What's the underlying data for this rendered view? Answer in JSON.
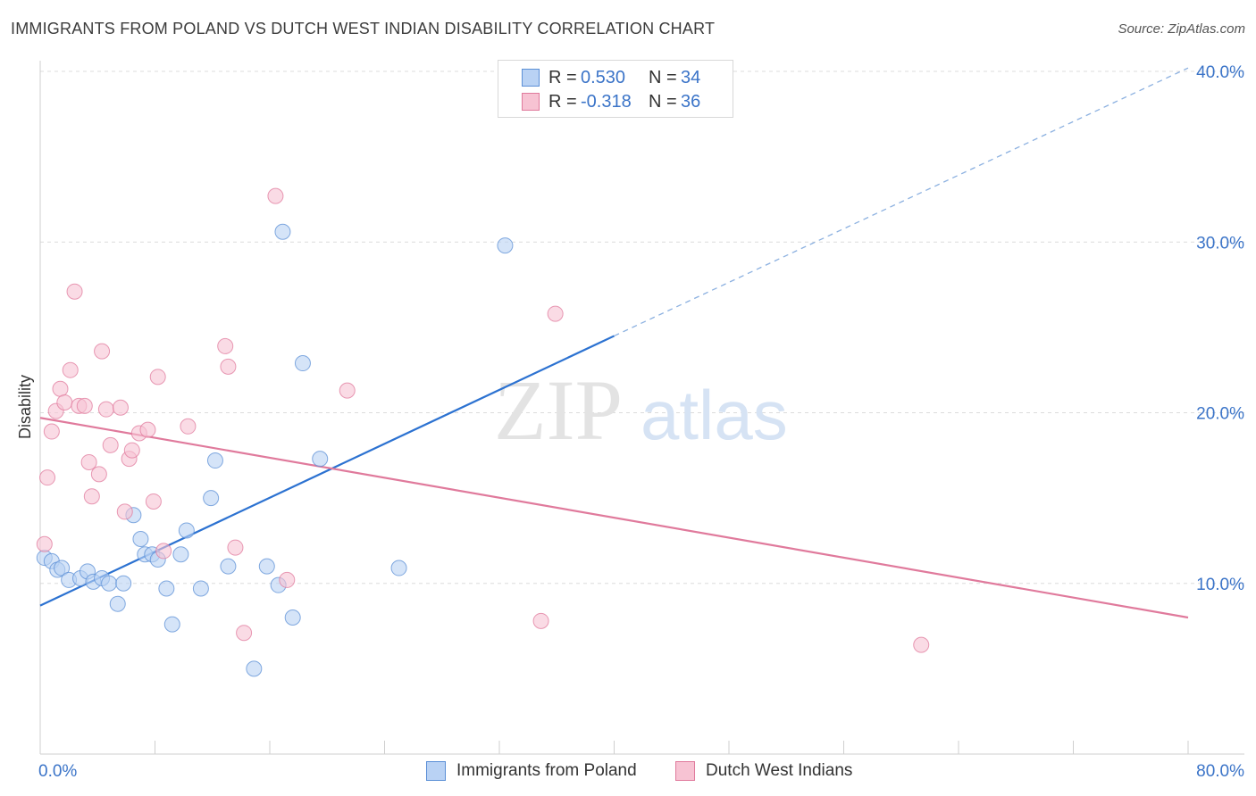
{
  "title": "IMMIGRANTS FROM POLAND VS DUTCH WEST INDIAN DISABILITY CORRELATION CHART",
  "source": "Source: ZipAtlas.com",
  "watermark": {
    "zip": "ZIP",
    "atlas": "atlas"
  },
  "legend": {
    "rows": [
      {
        "r_label": "R =",
        "r_value": "0.530",
        "n_label": "N =",
        "n_value": "34",
        "color": "#5b8fd6",
        "fill": "#b9d2f4"
      },
      {
        "r_label": "R =",
        "r_value": "-0.318",
        "n_label": "N =",
        "n_value": "36",
        "color": "#e07a9c",
        "fill": "#f7c3d3"
      }
    ]
  },
  "bottom_legend": [
    "Immigrants from Poland",
    "Dutch West Indians"
  ],
  "chart_data": {
    "type": "scatter",
    "xlabel": "",
    "ylabel": "Disability",
    "xlim": [
      0,
      80
    ],
    "ylim": [
      0,
      40
    ],
    "x_tick_labels": [
      "0.0%",
      "80.0%"
    ],
    "y_ticks": [
      10,
      20,
      30,
      40
    ],
    "y_tick_labels": [
      "10.0%",
      "20.0%",
      "30.0%",
      "40.0%"
    ],
    "grid": true,
    "legend_position": "top-center",
    "series": [
      {
        "name": "Immigrants from Poland",
        "color": "#5b8fd6",
        "fill": "#b9d2f4",
        "points": [
          [
            0.3,
            11.5
          ],
          [
            0.8,
            11.3
          ],
          [
            1.2,
            10.8
          ],
          [
            1.5,
            10.9
          ],
          [
            2.0,
            10.2
          ],
          [
            2.8,
            10.3
          ],
          [
            3.3,
            10.7
          ],
          [
            3.7,
            10.1
          ],
          [
            4.3,
            10.3
          ],
          [
            4.8,
            10.0
          ],
          [
            5.4,
            8.8
          ],
          [
            5.8,
            10.0
          ],
          [
            6.5,
            14.0
          ],
          [
            7.0,
            12.6
          ],
          [
            7.3,
            11.7
          ],
          [
            7.8,
            11.7
          ],
          [
            8.2,
            11.4
          ],
          [
            8.8,
            9.7
          ],
          [
            9.2,
            7.6
          ],
          [
            9.8,
            11.7
          ],
          [
            10.2,
            13.1
          ],
          [
            11.2,
            9.7
          ],
          [
            12.2,
            17.2
          ],
          [
            11.9,
            15.0
          ],
          [
            13.1,
            11.0
          ],
          [
            14.9,
            5.0
          ],
          [
            15.8,
            11.0
          ],
          [
            16.6,
            9.9
          ],
          [
            16.9,
            30.6
          ],
          [
            17.6,
            8.0
          ],
          [
            18.3,
            22.9
          ],
          [
            19.5,
            17.3
          ],
          [
            25.0,
            10.9
          ],
          [
            32.4,
            29.8
          ]
        ],
        "trend": {
          "x": [
            0,
            40
          ],
          "y": [
            8.7,
            24.5
          ],
          "dashed_to": [
            80,
            40.2
          ]
        }
      },
      {
        "name": "Dutch West Indians",
        "color": "#e07a9c",
        "fill": "#f7c3d3",
        "points": [
          [
            0.3,
            12.3
          ],
          [
            0.5,
            16.2
          ],
          [
            0.8,
            18.9
          ],
          [
            1.1,
            20.1
          ],
          [
            1.4,
            21.4
          ],
          [
            1.7,
            20.6
          ],
          [
            2.1,
            22.5
          ],
          [
            2.4,
            27.1
          ],
          [
            2.7,
            20.4
          ],
          [
            3.1,
            20.4
          ],
          [
            3.4,
            17.1
          ],
          [
            3.6,
            15.1
          ],
          [
            4.1,
            16.4
          ],
          [
            4.3,
            23.6
          ],
          [
            4.6,
            20.2
          ],
          [
            4.9,
            18.1
          ],
          [
            5.6,
            20.3
          ],
          [
            5.9,
            14.2
          ],
          [
            6.2,
            17.3
          ],
          [
            6.4,
            17.8
          ],
          [
            6.9,
            18.8
          ],
          [
            7.5,
            19.0
          ],
          [
            7.9,
            14.8
          ],
          [
            8.2,
            22.1
          ],
          [
            8.6,
            11.9
          ],
          [
            10.3,
            19.2
          ],
          [
            12.9,
            23.9
          ],
          [
            13.1,
            22.7
          ],
          [
            13.6,
            12.1
          ],
          [
            14.2,
            7.1
          ],
          [
            16.4,
            32.7
          ],
          [
            17.2,
            10.2
          ],
          [
            21.4,
            21.3
          ],
          [
            34.9,
            7.8
          ],
          [
            35.9,
            25.8
          ],
          [
            61.4,
            6.4
          ]
        ],
        "trend": {
          "x": [
            0,
            80
          ],
          "y": [
            19.7,
            8.0
          ]
        }
      }
    ]
  }
}
